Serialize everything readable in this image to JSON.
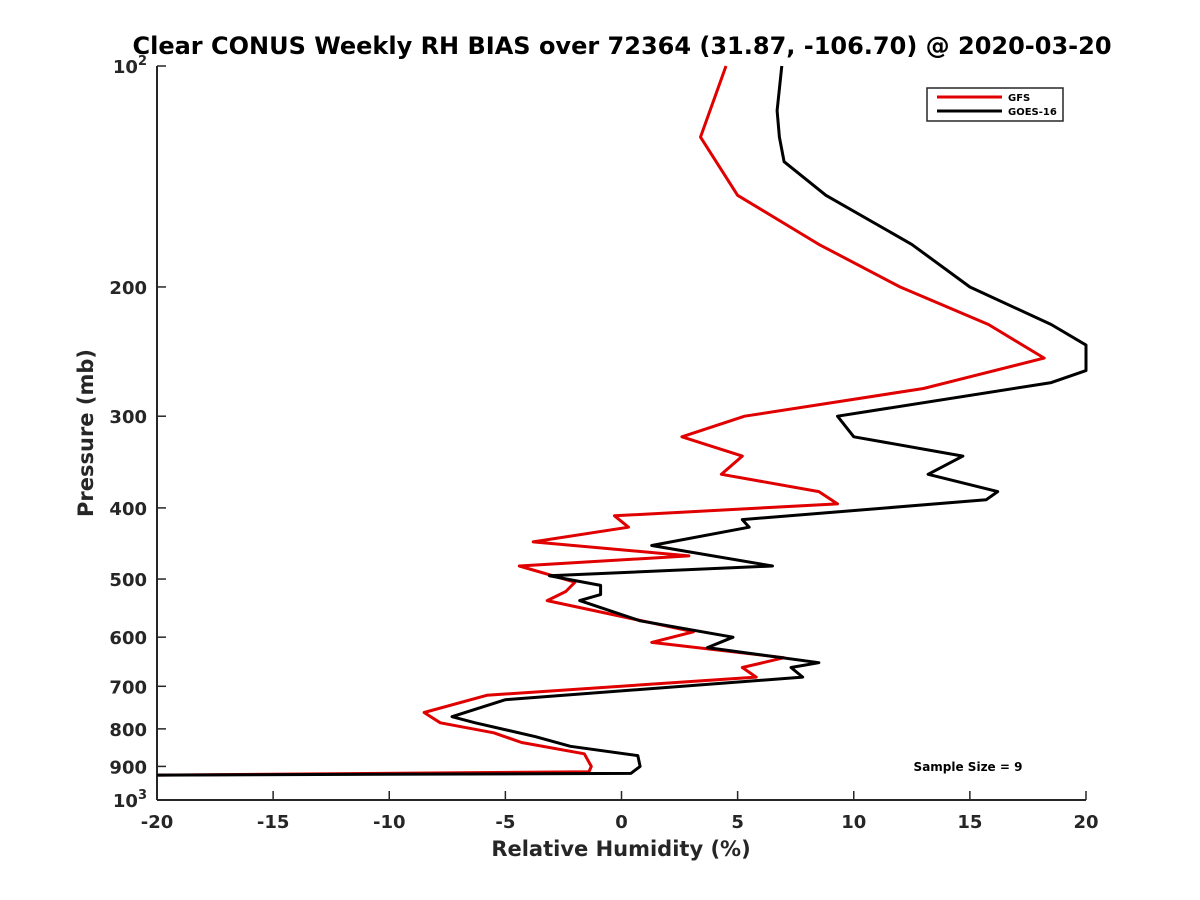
{
  "chart_data": {
    "type": "line",
    "title": "Clear CONUS Weekly RH BIAS over 72364 (31.87, -106.70) @ 2020-03-20",
    "xlabel": "Relative Humidity (%)",
    "ylabel": "Pressure (mb)",
    "xlim": [
      -20,
      20
    ],
    "ylim": [
      1000,
      100
    ],
    "y_scale": "log",
    "y_reversed": true,
    "grid": false,
    "legend_position": "top-right",
    "x_ticks": [
      {
        "value": -20,
        "label": "-20"
      },
      {
        "value": -15,
        "label": "-15"
      },
      {
        "value": -10,
        "label": "-10"
      },
      {
        "value": -5,
        "label": "-5"
      },
      {
        "value": 0,
        "label": "0"
      },
      {
        "value": 5,
        "label": "5"
      },
      {
        "value": 10,
        "label": "10"
      },
      {
        "value": 15,
        "label": "15"
      },
      {
        "value": 20,
        "label": "20"
      }
    ],
    "y_ticks": [
      {
        "value": 100,
        "label": "10",
        "exp": "2"
      },
      {
        "value": 200,
        "label": "200"
      },
      {
        "value": 300,
        "label": "300"
      },
      {
        "value": 400,
        "label": "400"
      },
      {
        "value": 500,
        "label": "500"
      },
      {
        "value": 600,
        "label": "600"
      },
      {
        "value": 700,
        "label": "700"
      },
      {
        "value": 800,
        "label": "800"
      },
      {
        "value": 900,
        "label": "900"
      },
      {
        "value": 1000,
        "label": "10",
        "exp": "3"
      }
    ],
    "series": [
      {
        "name": "GFS",
        "color": "#e00000",
        "points": [
          {
            "x": 4.5,
            "p": 100
          },
          {
            "x": 3.4,
            "p": 125
          },
          {
            "x": 5.0,
            "p": 150
          },
          {
            "x": 8.5,
            "p": 175
          },
          {
            "x": 12.0,
            "p": 200
          },
          {
            "x": 15.8,
            "p": 225
          },
          {
            "x": 18.2,
            "p": 250
          },
          {
            "x": 13.0,
            "p": 275
          },
          {
            "x": 5.3,
            "p": 300
          },
          {
            "x": 2.6,
            "p": 320
          },
          {
            "x": 5.2,
            "p": 340
          },
          {
            "x": 4.3,
            "p": 360
          },
          {
            "x": 8.5,
            "p": 380
          },
          {
            "x": 9.3,
            "p": 395
          },
          {
            "x": -0.3,
            "p": 410
          },
          {
            "x": 0.3,
            "p": 425
          },
          {
            "x": -3.8,
            "p": 445
          },
          {
            "x": 2.9,
            "p": 465
          },
          {
            "x": -4.4,
            "p": 480
          },
          {
            "x": -2.0,
            "p": 505
          },
          {
            "x": -2.4,
            "p": 520
          },
          {
            "x": -3.2,
            "p": 535
          },
          {
            "x": 3.1,
            "p": 590
          },
          {
            "x": 1.3,
            "p": 610
          },
          {
            "x": 7.0,
            "p": 640
          },
          {
            "x": 5.2,
            "p": 660
          },
          {
            "x": 5.8,
            "p": 680
          },
          {
            "x": -5.8,
            "p": 720
          },
          {
            "x": -8.5,
            "p": 760
          },
          {
            "x": -7.8,
            "p": 785
          },
          {
            "x": -5.5,
            "p": 810
          },
          {
            "x": -4.3,
            "p": 835
          },
          {
            "x": -1.6,
            "p": 865
          },
          {
            "x": -1.3,
            "p": 900
          },
          {
            "x": -1.4,
            "p": 915
          },
          {
            "x": -20,
            "p": 925
          }
        ]
      },
      {
        "name": "GOES-16",
        "color": "#000000",
        "points": [
          {
            "x": 6.9,
            "p": 100
          },
          {
            "x": 6.7,
            "p": 115
          },
          {
            "x": 6.8,
            "p": 125
          },
          {
            "x": 7.0,
            "p": 135
          },
          {
            "x": 8.8,
            "p": 150
          },
          {
            "x": 12.5,
            "p": 175
          },
          {
            "x": 15.0,
            "p": 200
          },
          {
            "x": 18.5,
            "p": 225
          },
          {
            "x": 20,
            "p": 240
          },
          {
            "x": 20,
            "p": 260
          },
          {
            "x": 18.5,
            "p": 270
          },
          {
            "x": 9.3,
            "p": 300
          },
          {
            "x": 10.0,
            "p": 320
          },
          {
            "x": 14.7,
            "p": 340
          },
          {
            "x": 13.2,
            "p": 360
          },
          {
            "x": 16.2,
            "p": 380
          },
          {
            "x": 15.7,
            "p": 390
          },
          {
            "x": 5.2,
            "p": 415
          },
          {
            "x": 5.5,
            "p": 425
          },
          {
            "x": 1.3,
            "p": 450
          },
          {
            "x": 6.5,
            "p": 480
          },
          {
            "x": -3.1,
            "p": 495
          },
          {
            "x": -0.9,
            "p": 510
          },
          {
            "x": -0.9,
            "p": 525
          },
          {
            "x": -1.8,
            "p": 535
          },
          {
            "x": 0.8,
            "p": 570
          },
          {
            "x": 4.8,
            "p": 600
          },
          {
            "x": 3.7,
            "p": 620
          },
          {
            "x": 8.5,
            "p": 650
          },
          {
            "x": 7.3,
            "p": 660
          },
          {
            "x": 7.8,
            "p": 680
          },
          {
            "x": -5.0,
            "p": 730
          },
          {
            "x": -7.3,
            "p": 770
          },
          {
            "x": -6.3,
            "p": 785
          },
          {
            "x": -3.7,
            "p": 820
          },
          {
            "x": -2.2,
            "p": 845
          },
          {
            "x": 0.7,
            "p": 870
          },
          {
            "x": 0.8,
            "p": 900
          },
          {
            "x": 0.4,
            "p": 920
          },
          {
            "x": -20,
            "p": 925
          }
        ]
      }
    ],
    "annotation": "Sample Size = 9"
  }
}
